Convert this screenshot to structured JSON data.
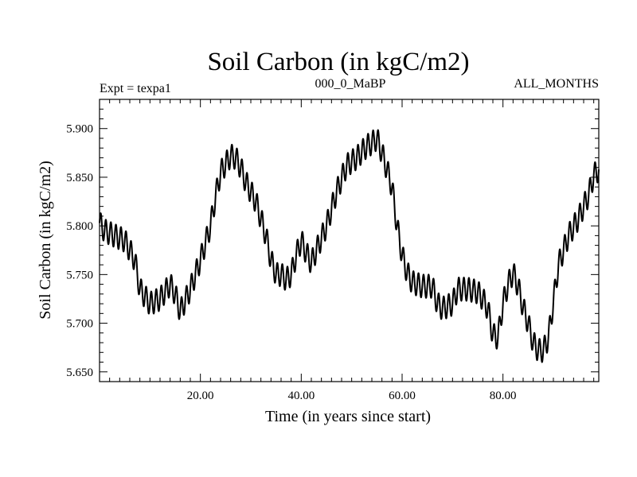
{
  "header": {
    "title": "Soil Carbon (in kgC/m2)",
    "left_label": "Expt = texpa1",
    "center_label": "000_0_MaBP",
    "right_label": "ALL_MONTHS"
  },
  "chart_data": {
    "type": "line",
    "title": "Soil Carbon (in kgC/m2)",
    "xlabel": "Time (in years since start)",
    "ylabel": "Soil Carbon (in kgC/m2)",
    "xlim": [
      0,
      99
    ],
    "ylim": [
      5.64,
      5.93
    ],
    "x_ticks": [
      20,
      40,
      60,
      80
    ],
    "x_tick_labels": [
      "20.00",
      "40.00",
      "60.00",
      "80.00"
    ],
    "y_ticks": [
      5.65,
      5.7,
      5.75,
      5.8,
      5.85,
      5.9
    ],
    "y_tick_labels": [
      "5.650",
      "5.700",
      "5.750",
      "5.800",
      "5.850",
      "5.900"
    ],
    "grid": false,
    "seasonal_cycle_amplitude": 0.012,
    "series": [
      {
        "x": [
          0,
          1,
          3,
          5,
          7,
          8,
          10,
          12,
          14,
          15,
          16,
          18,
          20,
          22,
          23,
          24,
          26,
          27,
          28,
          29,
          31,
          33,
          34,
          35,
          36,
          37,
          38,
          39,
          40,
          41,
          42,
          43,
          45,
          47,
          49,
          51,
          53,
          54,
          55,
          56,
          57,
          58,
          59,
          60,
          61,
          62,
          64,
          66,
          67,
          68,
          70,
          71,
          73,
          75,
          76,
          77,
          78,
          79,
          80,
          81,
          82,
          83,
          84,
          85,
          86,
          87,
          88,
          89,
          90,
          91,
          93,
          95,
          97,
          98,
          99
        ],
        "y": [
          5.803,
          5.795,
          5.79,
          5.785,
          5.765,
          5.735,
          5.72,
          5.725,
          5.74,
          5.73,
          5.712,
          5.735,
          5.765,
          5.8,
          5.83,
          5.855,
          5.872,
          5.87,
          5.86,
          5.845,
          5.825,
          5.79,
          5.765,
          5.75,
          5.75,
          5.745,
          5.75,
          5.77,
          5.785,
          5.772,
          5.762,
          5.775,
          5.8,
          5.835,
          5.862,
          5.87,
          5.882,
          5.885,
          5.89,
          5.875,
          5.858,
          5.84,
          5.8,
          5.77,
          5.752,
          5.742,
          5.738,
          5.738,
          5.72,
          5.715,
          5.72,
          5.735,
          5.735,
          5.732,
          5.725,
          5.715,
          5.688,
          5.685,
          5.72,
          5.74,
          5.752,
          5.738,
          5.716,
          5.7,
          5.68,
          5.672,
          5.672,
          5.685,
          5.722,
          5.76,
          5.79,
          5.808,
          5.832,
          5.852,
          5.858
        ]
      }
    ]
  }
}
